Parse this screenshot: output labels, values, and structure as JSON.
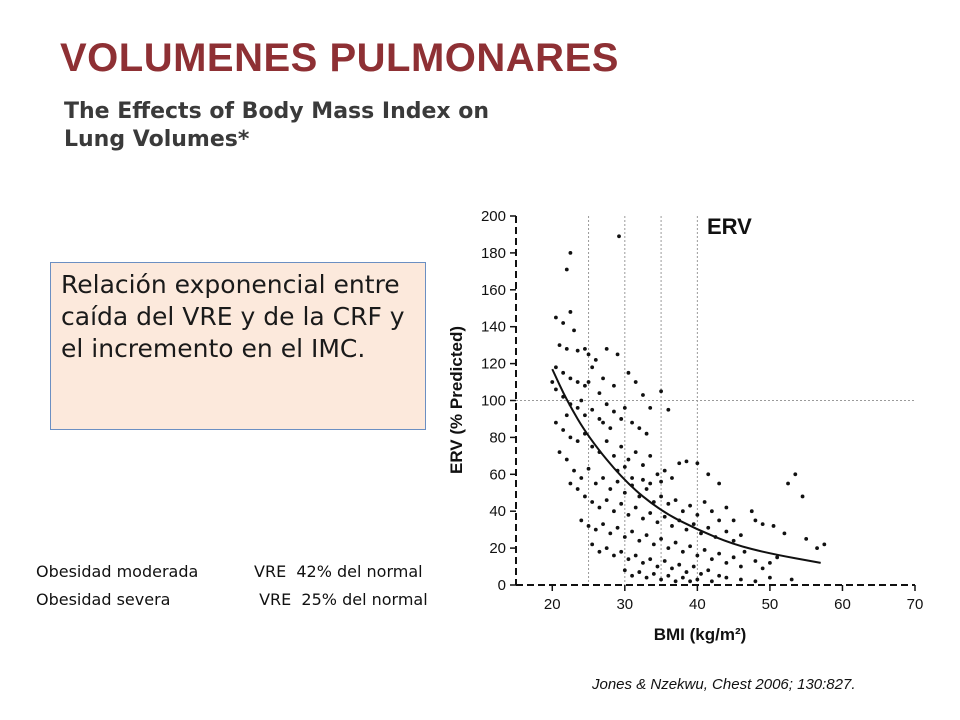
{
  "slide": {
    "title": "VOLUMENES PULMONARES",
    "paper_title_line1": "The Effects of Body Mass Index on",
    "paper_title_line2": "Lung Volumes*",
    "callout_text": "Relación exponencial entre caída del VRE  y de la CRF y el incremento en el IMC.",
    "notes": [
      {
        "label": "Obesidad moderada",
        "value": "VRE  42% del normal"
      },
      {
        "label": "Obesidad severa",
        "value": " VRE  25% del normal"
      }
    ],
    "citation": "Jones & Nzekwu, Chest 2006; 130:827."
  },
  "chart_data": {
    "type": "scatter",
    "title": "ERV",
    "xlabel": "BMI (kg/m²)",
    "ylabel": "ERV (% Predicted)",
    "xlim": [
      15,
      70
    ],
    "ylim": [
      0,
      200
    ],
    "xticks": [
      20,
      30,
      40,
      50,
      60,
      70
    ],
    "yticks": [
      0,
      20,
      40,
      60,
      80,
      100,
      120,
      140,
      160,
      180,
      200
    ],
    "reference_lines": {
      "vertical_bmi": [
        25,
        30,
        35,
        40
      ],
      "horizontal_erv": [
        100,
        0
      ]
    },
    "fit_curve": {
      "type": "exponential",
      "points": [
        [
          20,
          117
        ],
        [
          22,
          100
        ],
        [
          25,
          80
        ],
        [
          30,
          56
        ],
        [
          35,
          40
        ],
        [
          40,
          30
        ],
        [
          45,
          22
        ],
        [
          50,
          17
        ],
        [
          57,
          12
        ]
      ]
    },
    "series": [
      {
        "marker": "dot",
        "points": [
          [
            29.2,
            189
          ],
          [
            22.5,
            180
          ],
          [
            22,
            171
          ],
          [
            20.5,
            145
          ],
          [
            21.5,
            142
          ],
          [
            22.5,
            148
          ],
          [
            23,
            138
          ],
          [
            21,
            130
          ],
          [
            22,
            128
          ],
          [
            23.5,
            127
          ],
          [
            24.5,
            128
          ],
          [
            25,
            125
          ],
          [
            26,
            122
          ],
          [
            27.5,
            128
          ],
          [
            29,
            125
          ],
          [
            20.5,
            118
          ],
          [
            21.5,
            115
          ],
          [
            22.5,
            112
          ],
          [
            23.5,
            110
          ],
          [
            24.5,
            108
          ],
          [
            25.5,
            118
          ],
          [
            27,
            112
          ],
          [
            28.5,
            108
          ],
          [
            30.5,
            115
          ],
          [
            31.5,
            110
          ],
          [
            32.5,
            103
          ],
          [
            33.5,
            96
          ],
          [
            35,
            105
          ],
          [
            36,
            95
          ],
          [
            20.5,
            106
          ],
          [
            21.5,
            102
          ],
          [
            22.5,
            98
          ],
          [
            23.5,
            96
          ],
          [
            24.5,
            92
          ],
          [
            25.5,
            95
          ],
          [
            26.5,
            90
          ],
          [
            27.5,
            98
          ],
          [
            28.5,
            94
          ],
          [
            29.5,
            90
          ],
          [
            31,
            88
          ],
          [
            32,
            85
          ],
          [
            33,
            82
          ],
          [
            20.5,
            88
          ],
          [
            21.5,
            84
          ],
          [
            22.5,
            80
          ],
          [
            23.5,
            78
          ],
          [
            24.5,
            82
          ],
          [
            25.5,
            75
          ],
          [
            26.5,
            72
          ],
          [
            27.5,
            78
          ],
          [
            28.5,
            70
          ],
          [
            29.5,
            75
          ],
          [
            30.5,
            68
          ],
          [
            31.5,
            72
          ],
          [
            32.5,
            65
          ],
          [
            33.5,
            70
          ],
          [
            34.5,
            60
          ],
          [
            35.5,
            62
          ],
          [
            36.5,
            58
          ],
          [
            37.5,
            66
          ],
          [
            38.5,
            67
          ],
          [
            40,
            66
          ],
          [
            41.5,
            60
          ],
          [
            43,
            55
          ],
          [
            21,
            72
          ],
          [
            22,
            68
          ],
          [
            23,
            62
          ],
          [
            24,
            58
          ],
          [
            25,
            63
          ],
          [
            26,
            55
          ],
          [
            27,
            58
          ],
          [
            28,
            52
          ],
          [
            29,
            56
          ],
          [
            30,
            50
          ],
          [
            31,
            54
          ],
          [
            32,
            48
          ],
          [
            33,
            52
          ],
          [
            34,
            45
          ],
          [
            35,
            48
          ],
          [
            36,
            44
          ],
          [
            37,
            46
          ],
          [
            38,
            40
          ],
          [
            39,
            43
          ],
          [
            40,
            38
          ],
          [
            41,
            45
          ],
          [
            42,
            40
          ],
          [
            43,
            35
          ],
          [
            44,
            42
          ],
          [
            22.5,
            55
          ],
          [
            23.5,
            52
          ],
          [
            24.5,
            48
          ],
          [
            25.5,
            45
          ],
          [
            26.5,
            42
          ],
          [
            27.5,
            46
          ],
          [
            28.5,
            40
          ],
          [
            29.5,
            44
          ],
          [
            30.5,
            38
          ],
          [
            31.5,
            42
          ],
          [
            32.5,
            36
          ],
          [
            33.5,
            39
          ],
          [
            34.5,
            34
          ],
          [
            35.5,
            37
          ],
          [
            36.5,
            32
          ],
          [
            37.5,
            35
          ],
          [
            38.5,
            30
          ],
          [
            39.5,
            33
          ],
          [
            40.5,
            28
          ],
          [
            41.5,
            31
          ],
          [
            42.5,
            26
          ],
          [
            44,
            29
          ],
          [
            45,
            24
          ],
          [
            46,
            27
          ],
          [
            24,
            35
          ],
          [
            25,
            32
          ],
          [
            26,
            30
          ],
          [
            27,
            33
          ],
          [
            28,
            28
          ],
          [
            29,
            31
          ],
          [
            30,
            26
          ],
          [
            31,
            29
          ],
          [
            32,
            24
          ],
          [
            33,
            27
          ],
          [
            34,
            22
          ],
          [
            35,
            25
          ],
          [
            36,
            20
          ],
          [
            37,
            23
          ],
          [
            38,
            18
          ],
          [
            39,
            21
          ],
          [
            40,
            16
          ],
          [
            41,
            19
          ],
          [
            42,
            14
          ],
          [
            43,
            17
          ],
          [
            44,
            12
          ],
          [
            45,
            15
          ],
          [
            46,
            10
          ],
          [
            48,
            13
          ],
          [
            49,
            9
          ],
          [
            50,
            12
          ],
          [
            25.5,
            22
          ],
          [
            26.5,
            18
          ],
          [
            27.5,
            20
          ],
          [
            28.5,
            16
          ],
          [
            29.5,
            18
          ],
          [
            30.5,
            14
          ],
          [
            31.5,
            16
          ],
          [
            32.5,
            12
          ],
          [
            33.5,
            14
          ],
          [
            34.5,
            10
          ],
          [
            35.5,
            13
          ],
          [
            36.5,
            9
          ],
          [
            37.5,
            11
          ],
          [
            38.5,
            7
          ],
          [
            39.5,
            10
          ],
          [
            40.5,
            6
          ],
          [
            41.5,
            8
          ],
          [
            43,
            5
          ],
          [
            30,
            8
          ],
          [
            31,
            5
          ],
          [
            32,
            7
          ],
          [
            33,
            4
          ],
          [
            34,
            6
          ],
          [
            35,
            3
          ],
          [
            36,
            5
          ],
          [
            37,
            2
          ],
          [
            38,
            4
          ],
          [
            39,
            2
          ],
          [
            40,
            3
          ],
          [
            42,
            2
          ],
          [
            44,
            4
          ],
          [
            46,
            3
          ],
          [
            48,
            2
          ],
          [
            50,
            4
          ],
          [
            53,
            3
          ],
          [
            47.5,
            40
          ],
          [
            48,
            35
          ],
          [
            49,
            33
          ],
          [
            50.5,
            32
          ],
          [
            52,
            28
          ],
          [
            52.5,
            55
          ],
          [
            53.5,
            60
          ],
          [
            54.5,
            48
          ],
          [
            55,
            25
          ],
          [
            56.5,
            20
          ],
          [
            57.5,
            22
          ],
          [
            45,
            35
          ],
          [
            46.5,
            18
          ],
          [
            51,
            15
          ],
          [
            29,
            62
          ],
          [
            30,
            64
          ],
          [
            31,
            58
          ],
          [
            32.5,
            57
          ],
          [
            33.5,
            55
          ],
          [
            35,
            56
          ],
          [
            28,
            85
          ],
          [
            27,
            88
          ],
          [
            30,
            96
          ],
          [
            24,
            100
          ],
          [
            25,
            110
          ],
          [
            26.5,
            104
          ],
          [
            22,
            92
          ],
          [
            20,
            110
          ]
        ]
      }
    ]
  }
}
